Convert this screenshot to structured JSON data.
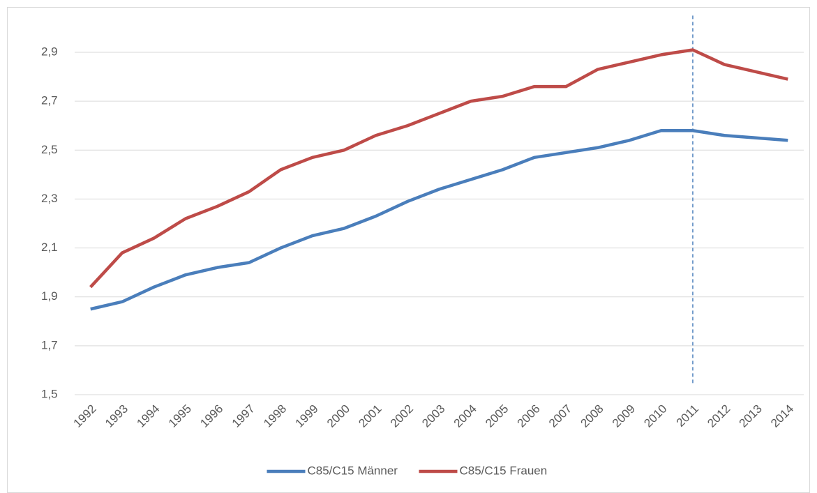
{
  "chart_data": {
    "type": "line",
    "categories": [
      "1992",
      "1993",
      "1994",
      "1995",
      "1996",
      "1997",
      "1998",
      "1999",
      "2000",
      "2001",
      "2002",
      "2003",
      "2004",
      "2005",
      "2006",
      "2007",
      "2008",
      "2009",
      "2010",
      "2011",
      "2012",
      "2013",
      "2014"
    ],
    "series": [
      {
        "name": "C85/C15 Männer",
        "color": "#4a7ebb",
        "values": [
          1.85,
          1.88,
          1.94,
          1.99,
          2.02,
          2.04,
          2.1,
          2.15,
          2.18,
          2.23,
          2.29,
          2.34,
          2.38,
          2.42,
          2.47,
          2.49,
          2.51,
          2.54,
          2.58,
          2.58,
          2.56,
          2.55,
          2.54
        ]
      },
      {
        "name": "C85/C15 Frauen",
        "color": "#be4b48",
        "values": [
          1.94,
          2.08,
          2.14,
          2.22,
          2.27,
          2.33,
          2.42,
          2.47,
          2.5,
          2.56,
          2.6,
          2.65,
          2.7,
          2.72,
          2.76,
          2.76,
          2.83,
          2.86,
          2.89,
          2.91,
          2.85,
          2.82,
          2.79
        ]
      }
    ],
    "ylim": [
      1.5,
      3.05
    ],
    "yticks": [
      {
        "value": 1.5,
        "label": "1,5"
      },
      {
        "value": 1.7,
        "label": "1,7"
      },
      {
        "value": 1.9,
        "label": "1,9"
      },
      {
        "value": 2.1,
        "label": "2,1"
      },
      {
        "value": 2.3,
        "label": "2,3"
      },
      {
        "value": 2.5,
        "label": "2,5"
      },
      {
        "value": 2.7,
        "label": "2,7"
      },
      {
        "value": 2.9,
        "label": "2,9"
      }
    ],
    "grid": true,
    "vline": "2011",
    "legend": "bottom"
  }
}
